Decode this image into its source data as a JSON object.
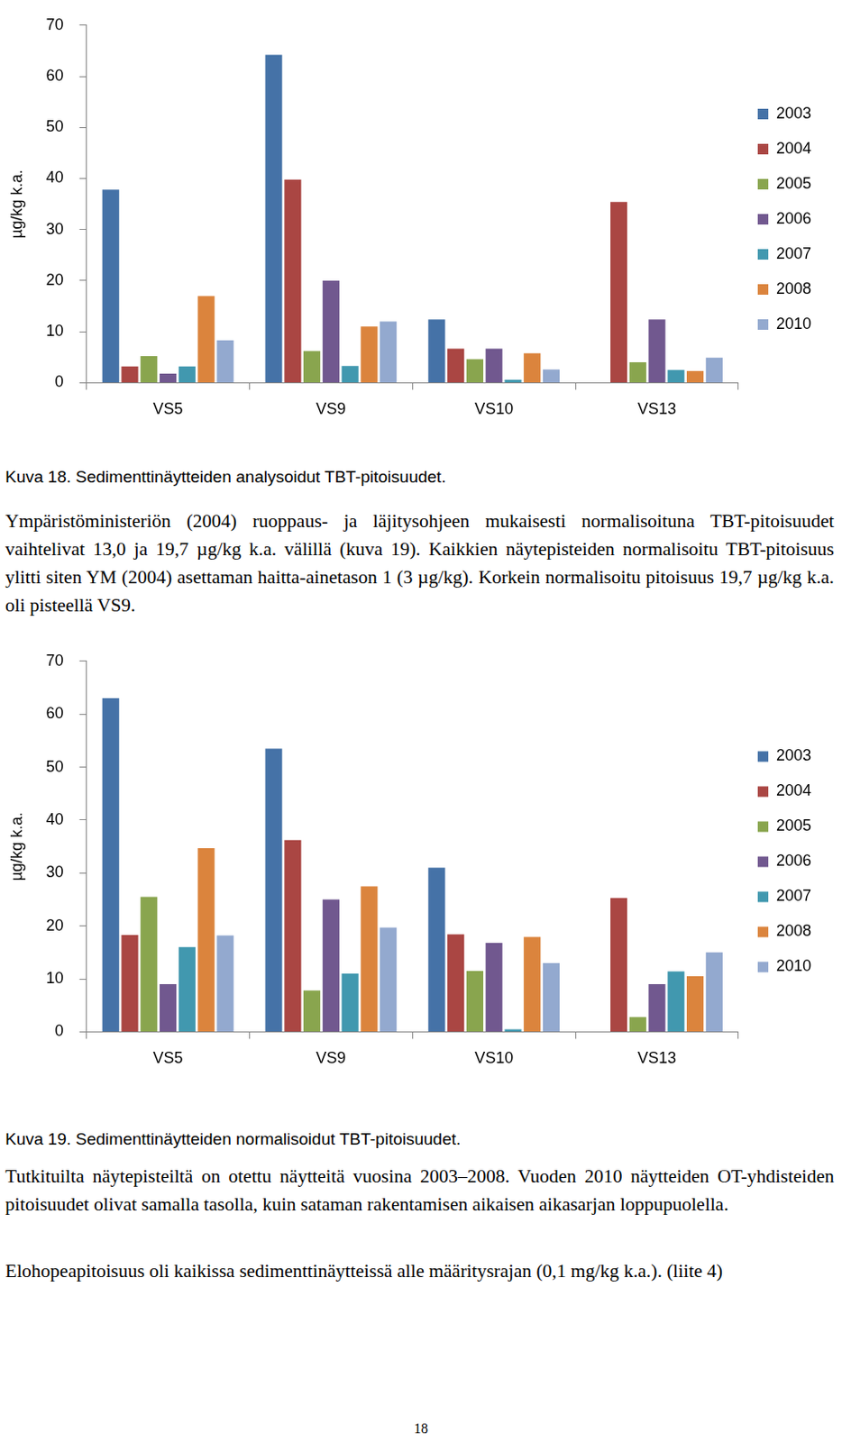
{
  "chart_data": [
    {
      "type": "bar",
      "y_label": "µg/kg k.a.",
      "categories": [
        "VS5",
        "VS9",
        "VS10",
        "VS13"
      ],
      "series": [
        {
          "name": "2003",
          "color": "#4572A7",
          "values": [
            37.8,
            64.2,
            12.4,
            null
          ]
        },
        {
          "name": "2004",
          "color": "#AA4643",
          "values": [
            3.2,
            39.8,
            6.7,
            35.4
          ]
        },
        {
          "name": "2005",
          "color": "#89A54E",
          "values": [
            5.2,
            6.2,
            4.6,
            4.0
          ]
        },
        {
          "name": "2006",
          "color": "#71588F",
          "values": [
            1.8,
            20.0,
            6.7,
            12.4
          ]
        },
        {
          "name": "2007",
          "color": "#4198AF",
          "values": [
            3.2,
            3.3,
            0.6,
            2.5
          ]
        },
        {
          "name": "2008",
          "color": "#DB843D",
          "values": [
            17.0,
            11.0,
            5.8,
            2.3
          ]
        },
        {
          "name": "2010",
          "color": "#93A9CF",
          "values": [
            8.3,
            12.0,
            2.6,
            4.9
          ]
        }
      ],
      "ylim": [
        0,
        70
      ],
      "yticks": [
        0,
        10,
        20,
        30,
        40,
        50,
        60,
        70
      ],
      "grid": false,
      "legend": "right"
    },
    {
      "type": "bar",
      "y_label": "µg/kg k.a.",
      "categories": [
        "VS5",
        "VS9",
        "VS10",
        "VS13"
      ],
      "series": [
        {
          "name": "2003",
          "color": "#4572A7",
          "values": [
            63.0,
            53.5,
            31.0,
            null
          ]
        },
        {
          "name": "2004",
          "color": "#AA4643",
          "values": [
            18.3,
            36.2,
            18.4,
            25.3
          ]
        },
        {
          "name": "2005",
          "color": "#89A54E",
          "values": [
            25.5,
            7.8,
            11.5,
            2.8
          ]
        },
        {
          "name": "2006",
          "color": "#71588F",
          "values": [
            9.0,
            25.0,
            16.8,
            9.0
          ]
        },
        {
          "name": "2007",
          "color": "#4198AF",
          "values": [
            16.0,
            11.0,
            0.5,
            11.4
          ]
        },
        {
          "name": "2008",
          "color": "#DB843D",
          "values": [
            34.7,
            27.5,
            17.9,
            10.5
          ]
        },
        {
          "name": "2010",
          "color": "#93A9CF",
          "values": [
            18.2,
            19.7,
            13.0,
            15.0
          ]
        }
      ],
      "ylim": [
        0,
        70
      ],
      "yticks": [
        0,
        10,
        20,
        30,
        40,
        50,
        60,
        70
      ],
      "grid": false,
      "legend": "right"
    }
  ],
  "page": {
    "caption_1": "Kuva 18. Sedimenttinäytteiden analysoidut TBT-pitoisuudet.",
    "paragraph_1": "Ympäristöministeriön (2004) ruoppaus- ja läjitysohjeen mukaisesti normalisoituna TBT-pitoisuudet vaihtelivat 13,0 ja 19,7 µg/kg k.a. välillä (kuva 19). Kaikkien näytepisteiden normalisoitu TBT-pitoisuus ylitti siten YM (2004) asettaman haitta-ainetason 1 (3 µg/kg). Korkein normalisoitu pitoisuus 19,7 µg/kg k.a. oli pisteellä VS9.",
    "caption_2": "Kuva 19. Sedimenttinäytteiden normalisoidut TBT-pitoisuudet.",
    "paragraph_2": "Tutkituilta näytepisteiltä on otettu näytteitä vuosina 2003–2008. Vuoden 2010 näytteiden OT-yhdisteiden pitoisuudet olivat samalla tasolla, kuin sataman rakentamisen aikaisen aikasarjan loppupuolella.",
    "paragraph_3": "Elohopeapitoisuus oli kaikissa sedimenttinäytteissä alle määritysrajan (0,1 mg/kg k.a.). (liite 4)",
    "page_number": "18"
  }
}
